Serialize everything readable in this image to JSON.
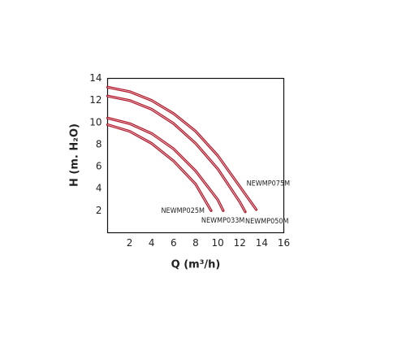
{
  "chart_data": {
    "type": "line",
    "x_label": "Q (m³/h)",
    "y_label": "H (m. H₂O)",
    "xlim": [
      0,
      16
    ],
    "xticks": [
      2,
      4,
      6,
      8,
      10,
      12,
      14,
      16
    ],
    "ylim": [
      0,
      14
    ],
    "yticks": [
      2,
      4,
      6,
      8,
      10,
      12,
      14
    ],
    "grid": false,
    "series": [
      {
        "name": "NEWMP075M",
        "color": "#b3182b",
        "x": [
          0,
          2,
          4,
          6,
          8,
          10,
          12,
          13.5
        ],
        "values": [
          13.2,
          12.8,
          12.0,
          10.8,
          9.2,
          7.0,
          4.2,
          2.1
        ]
      },
      {
        "name": "NEWMP050M",
        "color": "#b3182b",
        "x": [
          0,
          2,
          4,
          6,
          8,
          10,
          12,
          12.5
        ],
        "values": [
          12.4,
          12.0,
          11.2,
          9.9,
          8.1,
          5.8,
          2.8,
          1.9
        ]
      },
      {
        "name": "NEWMP033M",
        "color": "#b3182b",
        "x": [
          0,
          2,
          4,
          6,
          8,
          10,
          10.5
        ],
        "values": [
          10.4,
          9.9,
          9.0,
          7.6,
          5.6,
          3.0,
          2.0
        ]
      },
      {
        "name": "NEWMP025M",
        "color": "#b3182b",
        "x": [
          0,
          2,
          4,
          6,
          8,
          9.4
        ],
        "values": [
          9.8,
          9.2,
          8.1,
          6.5,
          4.4,
          2.0
        ]
      }
    ]
  }
}
